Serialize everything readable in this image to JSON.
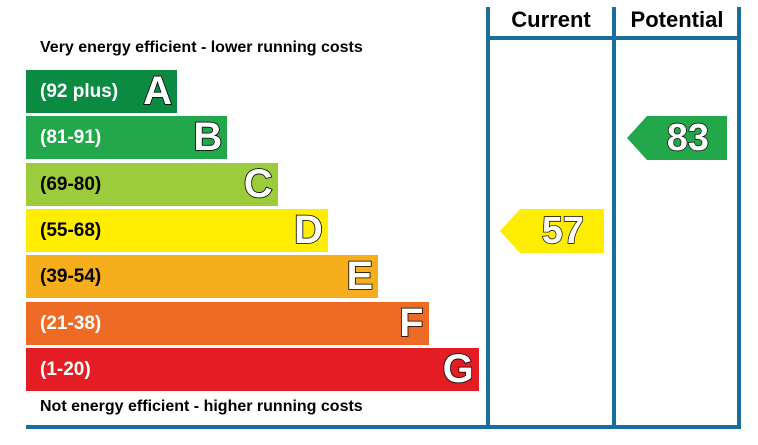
{
  "chart_data": {
    "type": "bar",
    "title_top": "Very energy efficient - lower running costs",
    "title_bottom": "Not energy efficient - higher running costs",
    "columns": [
      "Current",
      "Potential"
    ],
    "bands": [
      {
        "letter": "A",
        "range": "(92 plus)",
        "color": "#0b8a42"
      },
      {
        "letter": "B",
        "range": "(81-91)",
        "color": "#22a84a"
      },
      {
        "letter": "C",
        "range": "(69-80)",
        "color": "#9ccb3b"
      },
      {
        "letter": "D",
        "range": "(55-68)",
        "color": "#ffed00"
      },
      {
        "letter": "E",
        "range": "(39-54)",
        "color": "#f7ae1d"
      },
      {
        "letter": "F",
        "range": "(21-38)",
        "color": "#ed6b25"
      },
      {
        "letter": "G",
        "range": "(1-20)",
        "color": "#e31d23"
      }
    ],
    "current": {
      "value": "57",
      "band": "D",
      "color": "#ffed00"
    },
    "potential": {
      "value": "83",
      "band": "B",
      "color": "#22a84a"
    }
  }
}
